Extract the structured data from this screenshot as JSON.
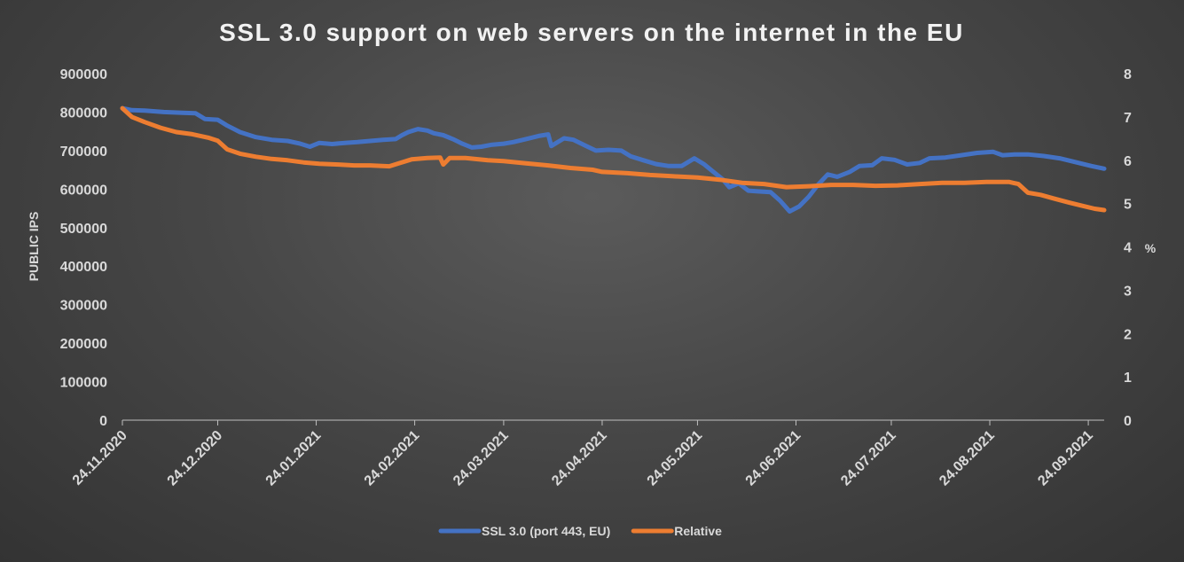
{
  "chart_data": {
    "type": "line",
    "title": "SSL 3.0 support on web servers on the internet in the EU",
    "ylabel_left": "PUBLIC IPS",
    "ylabel_right": "%",
    "x_start": "2020-11-24",
    "x_end": "2021-09-29",
    "x_ticks": [
      "24.11.2020",
      "24.12.2020",
      "24.01.2021",
      "24.02.2021",
      "24.03.2021",
      "24.04.2021",
      "24.05.2021",
      "24.06.2021",
      "24.07.2021",
      "24.08.2021",
      "24.09.2021"
    ],
    "x_tick_dates": [
      "2020-11-24",
      "2020-12-24",
      "2021-01-24",
      "2021-02-24",
      "2021-03-24",
      "2021-04-24",
      "2021-05-24",
      "2021-06-24",
      "2021-07-24",
      "2021-08-24",
      "2021-09-24"
    ],
    "y_left_ticks": [
      "0",
      "100000",
      "200000",
      "300000",
      "400000",
      "500000",
      "600000",
      "700000",
      "800000",
      "900000"
    ],
    "y_left_range": [
      0,
      900000
    ],
    "y_right_ticks": [
      "0",
      "1",
      "2",
      "3",
      "4",
      "5",
      "6",
      "7",
      "8"
    ],
    "y_right_range": [
      0,
      8
    ],
    "legend_position": "bottom",
    "series": [
      {
        "name": "SSL 3.0 (port 443, EU)",
        "axis": "left",
        "color": "#4472c4",
        "points": [
          [
            "2020-11-24",
            810000
          ],
          [
            "2020-11-27",
            805000
          ],
          [
            "2020-12-01",
            804000
          ],
          [
            "2020-12-07",
            800000
          ],
          [
            "2020-12-13",
            798000
          ],
          [
            "2020-12-17",
            797000
          ],
          [
            "2020-12-20",
            782000
          ],
          [
            "2020-12-24",
            780000
          ],
          [
            "2020-12-27",
            765000
          ],
          [
            "2020-12-31",
            748000
          ],
          [
            "2021-01-05",
            735000
          ],
          [
            "2021-01-10",
            728000
          ],
          [
            "2021-01-15",
            725000
          ],
          [
            "2021-01-19",
            718000
          ],
          [
            "2021-01-22",
            710000
          ],
          [
            "2021-01-25",
            720000
          ],
          [
            "2021-01-29",
            717000
          ],
          [
            "2021-02-02",
            720000
          ],
          [
            "2021-02-06",
            722000
          ],
          [
            "2021-02-10",
            725000
          ],
          [
            "2021-02-14",
            728000
          ],
          [
            "2021-02-18",
            730000
          ],
          [
            "2021-02-20",
            740000
          ],
          [
            "2021-02-22",
            748000
          ],
          [
            "2021-02-25",
            756000
          ],
          [
            "2021-02-28",
            752000
          ],
          [
            "2021-03-02",
            745000
          ],
          [
            "2021-03-05",
            740000
          ],
          [
            "2021-03-08",
            730000
          ],
          [
            "2021-03-11",
            718000
          ],
          [
            "2021-03-14",
            708000
          ],
          [
            "2021-03-17",
            710000
          ],
          [
            "2021-03-20",
            715000
          ],
          [
            "2021-03-24",
            718000
          ],
          [
            "2021-03-27",
            722000
          ],
          [
            "2021-03-31",
            730000
          ],
          [
            "2021-04-04",
            738000
          ],
          [
            "2021-04-07",
            742000
          ],
          [
            "2021-04-08",
            712000
          ],
          [
            "2021-04-12",
            732000
          ],
          [
            "2021-04-15",
            728000
          ],
          [
            "2021-04-19",
            712000
          ],
          [
            "2021-04-22",
            700000
          ],
          [
            "2021-04-26",
            702000
          ],
          [
            "2021-04-30",
            700000
          ],
          [
            "2021-05-03",
            685000
          ],
          [
            "2021-05-07",
            675000
          ],
          [
            "2021-05-11",
            665000
          ],
          [
            "2021-05-15",
            660000
          ],
          [
            "2021-05-19",
            660000
          ],
          [
            "2021-05-23",
            680000
          ],
          [
            "2021-05-26",
            665000
          ],
          [
            "2021-05-29",
            645000
          ],
          [
            "2021-06-01",
            625000
          ],
          [
            "2021-06-03",
            605000
          ],
          [
            "2021-06-06",
            615000
          ],
          [
            "2021-06-09",
            596000
          ],
          [
            "2021-06-12",
            594000
          ],
          [
            "2021-06-16",
            592000
          ],
          [
            "2021-06-19",
            570000
          ],
          [
            "2021-06-22",
            542000
          ],
          [
            "2021-06-25",
            555000
          ],
          [
            "2021-06-28",
            580000
          ],
          [
            "2021-07-01",
            612000
          ],
          [
            "2021-07-04",
            638000
          ],
          [
            "2021-07-07",
            632000
          ],
          [
            "2021-07-11",
            645000
          ],
          [
            "2021-07-14",
            660000
          ],
          [
            "2021-07-18",
            662000
          ],
          [
            "2021-07-21",
            680000
          ],
          [
            "2021-07-25",
            676000
          ],
          [
            "2021-07-29",
            664000
          ],
          [
            "2021-08-02",
            668000
          ],
          [
            "2021-08-05",
            680000
          ],
          [
            "2021-08-10",
            682000
          ],
          [
            "2021-08-15",
            688000
          ],
          [
            "2021-08-20",
            694000
          ],
          [
            "2021-08-25",
            697000
          ],
          [
            "2021-08-28",
            688000
          ],
          [
            "2021-09-01",
            690000
          ],
          [
            "2021-09-05",
            690000
          ],
          [
            "2021-09-10",
            686000
          ],
          [
            "2021-09-15",
            680000
          ],
          [
            "2021-09-20",
            670000
          ],
          [
            "2021-09-25",
            660000
          ],
          [
            "2021-09-29",
            653000
          ]
        ]
      },
      {
        "name": "Relative",
        "axis": "right",
        "color": "#ed7d31",
        "points": [
          [
            "2020-11-24",
            7.2
          ],
          [
            "2020-11-27",
            7.0
          ],
          [
            "2020-12-01",
            6.88
          ],
          [
            "2020-12-06",
            6.75
          ],
          [
            "2020-12-11",
            6.65
          ],
          [
            "2020-12-16",
            6.6
          ],
          [
            "2020-12-21",
            6.52
          ],
          [
            "2020-12-24",
            6.45
          ],
          [
            "2020-12-27",
            6.25
          ],
          [
            "2020-12-31",
            6.15
          ],
          [
            "2021-01-05",
            6.08
          ],
          [
            "2021-01-10",
            6.03
          ],
          [
            "2021-01-15",
            6.0
          ],
          [
            "2021-01-20",
            5.95
          ],
          [
            "2021-01-25",
            5.92
          ],
          [
            "2021-01-31",
            5.9
          ],
          [
            "2021-02-05",
            5.88
          ],
          [
            "2021-02-10",
            5.88
          ],
          [
            "2021-02-16",
            5.86
          ],
          [
            "2021-02-19",
            5.93
          ],
          [
            "2021-02-23",
            6.02
          ],
          [
            "2021-02-28",
            6.05
          ],
          [
            "2021-03-04",
            6.06
          ],
          [
            "2021-03-05",
            5.9
          ],
          [
            "2021-03-07",
            6.05
          ],
          [
            "2021-03-12",
            6.05
          ],
          [
            "2021-03-19",
            6.0
          ],
          [
            "2021-03-24",
            5.98
          ],
          [
            "2021-03-31",
            5.93
          ],
          [
            "2021-04-07",
            5.88
          ],
          [
            "2021-04-14",
            5.82
          ],
          [
            "2021-04-21",
            5.78
          ],
          [
            "2021-04-24",
            5.73
          ],
          [
            "2021-05-02",
            5.7
          ],
          [
            "2021-05-09",
            5.66
          ],
          [
            "2021-05-16",
            5.63
          ],
          [
            "2021-05-24",
            5.6
          ],
          [
            "2021-05-31",
            5.55
          ],
          [
            "2021-06-07",
            5.48
          ],
          [
            "2021-06-14",
            5.45
          ],
          [
            "2021-06-21",
            5.38
          ],
          [
            "2021-06-28",
            5.4
          ],
          [
            "2021-07-05",
            5.43
          ],
          [
            "2021-07-12",
            5.43
          ],
          [
            "2021-07-19",
            5.41
          ],
          [
            "2021-07-26",
            5.42
          ],
          [
            "2021-08-02",
            5.45
          ],
          [
            "2021-08-09",
            5.48
          ],
          [
            "2021-08-16",
            5.48
          ],
          [
            "2021-08-23",
            5.5
          ],
          [
            "2021-08-30",
            5.5
          ],
          [
            "2021-09-02",
            5.45
          ],
          [
            "2021-09-05",
            5.25
          ],
          [
            "2021-09-09",
            5.2
          ],
          [
            "2021-09-13",
            5.12
          ],
          [
            "2021-09-18",
            5.02
          ],
          [
            "2021-09-22",
            4.95
          ],
          [
            "2021-09-26",
            4.88
          ],
          [
            "2021-09-29",
            4.85
          ]
        ]
      }
    ]
  }
}
